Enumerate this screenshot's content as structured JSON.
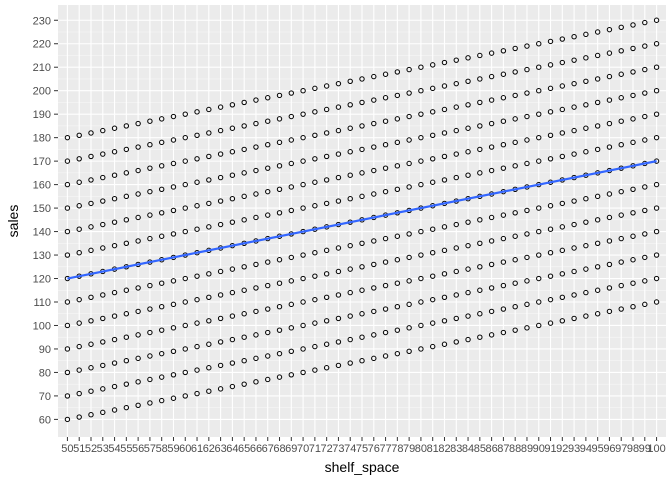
{
  "chart_data": {
    "type": "scatter",
    "title": "",
    "xlabel": "shelf_space",
    "ylabel": "sales",
    "x_ticks": [
      50,
      51,
      52,
      53,
      54,
      55,
      56,
      57,
      58,
      59,
      60,
      61,
      62,
      63,
      64,
      65,
      66,
      67,
      68,
      69,
      70,
      71,
      72,
      73,
      74,
      75,
      76,
      77,
      78,
      79,
      80,
      81,
      82,
      83,
      84,
      85,
      86,
      87,
      88,
      89,
      90,
      91,
      92,
      93,
      94,
      95,
      96,
      97,
      98,
      99,
      100
    ],
    "y_ticks": [
      60,
      70,
      80,
      90,
      100,
      110,
      120,
      130,
      140,
      150,
      160,
      170,
      180,
      190,
      200,
      210,
      220,
      230
    ],
    "xlim": [
      49.2,
      100.8
    ],
    "ylim": [
      52.5,
      236.5
    ],
    "grid": true,
    "scatter_series": {
      "x": [
        50,
        100
      ],
      "intercepts_at_x50": [
        60,
        70,
        80,
        90,
        100,
        110,
        120,
        130,
        140,
        150,
        160,
        170,
        180
      ],
      "slope": 1
    },
    "fit_line": {
      "x": [
        50,
        100
      ],
      "y": [
        120,
        170
      ],
      "color": "#3366FF"
    },
    "colors": {
      "panel_background": "#EBEBEB",
      "grid_major": "#FFFFFF",
      "point_stroke": "#000000",
      "fit_line": "#3366FF"
    }
  }
}
